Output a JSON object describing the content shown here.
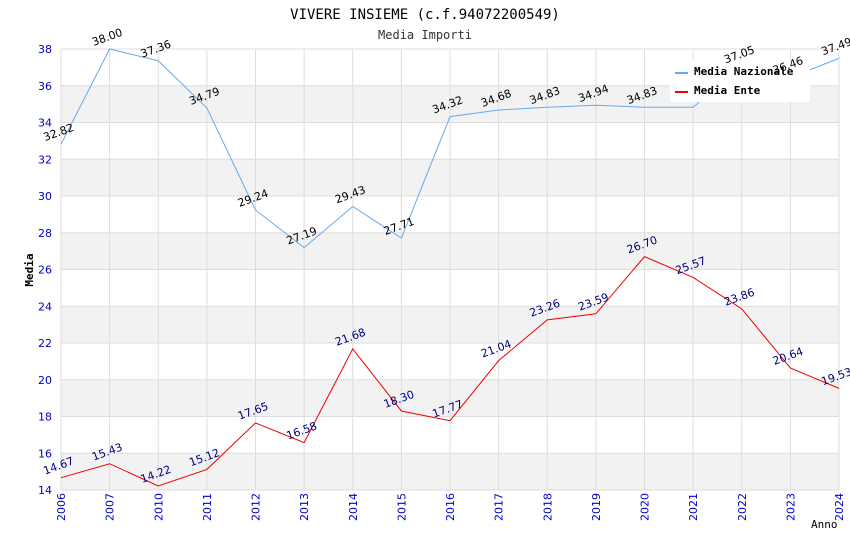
{
  "chart_data": {
    "type": "line",
    "title": "VIVERE INSIEME (c.f.94072200549)",
    "subtitle": "Media Importi",
    "xlabel": "Anno",
    "ylabel": "Media",
    "ylim": [
      14,
      38
    ],
    "yticks": [
      "14",
      "16",
      "18",
      "20",
      "22",
      "24",
      "26",
      "28",
      "30",
      "32",
      "34",
      "36",
      "38"
    ],
    "categories": [
      "2006",
      "2007",
      "2010",
      "2011",
      "2012",
      "2013",
      "2014",
      "2015",
      "2016",
      "2017",
      "2018",
      "2019",
      "2020",
      "2021",
      "2022",
      "2023",
      "2024"
    ],
    "grid": true,
    "legend_position": "top-right",
    "series": [
      {
        "name": "Media Nazionale",
        "color": "#66aaee",
        "label_color": "#000000",
        "values": [
          32.82,
          38.0,
          37.36,
          34.79,
          29.24,
          27.19,
          29.43,
          27.71,
          34.32,
          34.68,
          34.83,
          34.94,
          34.83,
          34.83,
          37.05,
          36.46,
          37.49
        ],
        "labels": [
          "32.82",
          "38.00",
          "37.36",
          "34.79",
          "29.24",
          "27.19",
          "29.43",
          "27.71",
          "34.32",
          "34.68",
          "34.83",
          "34.94",
          "34.83",
          "",
          "37.05",
          "36.46",
          "37.49"
        ]
      },
      {
        "name": "Media Ente",
        "color": "#ee0000",
        "label_color": "#000080",
        "values": [
          14.67,
          15.43,
          14.22,
          15.12,
          17.65,
          16.58,
          21.68,
          18.3,
          17.77,
          21.04,
          23.26,
          23.59,
          26.7,
          25.57,
          23.86,
          20.64,
          19.53
        ],
        "labels": [
          "14.67",
          "15.43",
          "14.22",
          "15.12",
          "17.65",
          "16.58",
          "21.68",
          "18.30",
          "17.77",
          "21.04",
          "23.26",
          "23.59",
          "26.70",
          "25.57",
          "23.86",
          "20.64",
          "19.53"
        ]
      }
    ],
    "colors": {
      "axis_text": "#0000cc",
      "band": "#f2f2f2",
      "grid": "#dddddd",
      "title_text": "#000000",
      "subtitle_text": "#333333"
    }
  }
}
